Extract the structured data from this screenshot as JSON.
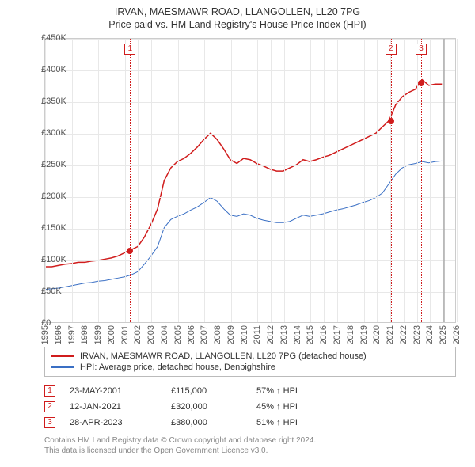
{
  "title_line1": "IRVAN, MAESMAWR ROAD, LLANGOLLEN, LL20 7PG",
  "title_line2": "Price paid vs. HM Land Registry's House Price Index (HPI)",
  "chart": {
    "type": "line",
    "background_color": "#ffffff",
    "grid_color": "#e8e8e8",
    "border_color": "#cccccc",
    "xmin": 1995,
    "xmax": 2026,
    "ymin": 0,
    "ymax": 450000,
    "ytick_step": 50000,
    "yticks": [
      "£0",
      "£50K",
      "£100K",
      "£150K",
      "£200K",
      "£250K",
      "£300K",
      "£350K",
      "£400K",
      "£450K"
    ],
    "xticks": [
      1995,
      1996,
      1997,
      1998,
      1999,
      2000,
      2001,
      2002,
      2003,
      2004,
      2005,
      2006,
      2007,
      2008,
      2009,
      2010,
      2011,
      2012,
      2013,
      2014,
      2015,
      2016,
      2017,
      2018,
      2019,
      2020,
      2021,
      2022,
      2023,
      2024,
      2025,
      2026
    ],
    "label_fontsize": 11,
    "label_color": "#555555",
    "series": [
      {
        "name": "property",
        "label": "IRVAN, MAESMAWR ROAD, LLANGOLLEN, LL20 7PG (detached house)",
        "color": "#d01c1c",
        "line_width": 1.5,
        "points": [
          [
            1995.0,
            88000
          ],
          [
            1995.5,
            88000
          ],
          [
            1996.0,
            90000
          ],
          [
            1996.5,
            92000
          ],
          [
            1997.0,
            93000
          ],
          [
            1997.5,
            95000
          ],
          [
            1998.0,
            95000
          ],
          [
            1998.5,
            97000
          ],
          [
            1999.0,
            98000
          ],
          [
            1999.5,
            100000
          ],
          [
            2000.0,
            102000
          ],
          [
            2000.5,
            105000
          ],
          [
            2001.0,
            110000
          ],
          [
            2001.4,
            115000
          ],
          [
            2001.5,
            115000
          ],
          [
            2002.0,
            120000
          ],
          [
            2002.5,
            135000
          ],
          [
            2003.0,
            155000
          ],
          [
            2003.5,
            180000
          ],
          [
            2004.0,
            225000
          ],
          [
            2004.5,
            245000
          ],
          [
            2005.0,
            255000
          ],
          [
            2005.5,
            260000
          ],
          [
            2006.0,
            268000
          ],
          [
            2006.5,
            278000
          ],
          [
            2007.0,
            290000
          ],
          [
            2007.5,
            300000
          ],
          [
            2008.0,
            290000
          ],
          [
            2008.5,
            275000
          ],
          [
            2009.0,
            258000
          ],
          [
            2009.5,
            252000
          ],
          [
            2010.0,
            260000
          ],
          [
            2010.5,
            258000
          ],
          [
            2011.0,
            252000
          ],
          [
            2011.5,
            248000
          ],
          [
            2012.0,
            243000
          ],
          [
            2012.5,
            240000
          ],
          [
            2013.0,
            240000
          ],
          [
            2013.5,
            245000
          ],
          [
            2014.0,
            250000
          ],
          [
            2014.5,
            258000
          ],
          [
            2015.0,
            255000
          ],
          [
            2015.5,
            258000
          ],
          [
            2016.0,
            262000
          ],
          [
            2016.5,
            265000
          ],
          [
            2017.0,
            270000
          ],
          [
            2017.5,
            275000
          ],
          [
            2018.0,
            280000
          ],
          [
            2018.5,
            285000
          ],
          [
            2019.0,
            290000
          ],
          [
            2019.5,
            295000
          ],
          [
            2020.0,
            300000
          ],
          [
            2020.5,
            310000
          ],
          [
            2021.0,
            320000
          ],
          [
            2021.5,
            345000
          ],
          [
            2022.0,
            358000
          ],
          [
            2022.5,
            365000
          ],
          [
            2023.0,
            370000
          ],
          [
            2023.3,
            380000
          ],
          [
            2023.5,
            385000
          ],
          [
            2024.0,
            376000
          ],
          [
            2024.5,
            378000
          ],
          [
            2025.0,
            378000
          ]
        ]
      },
      {
        "name": "hpi",
        "label": "HPI: Average price, detached house, Denbighshire",
        "color": "#3a6fc4",
        "line_width": 1,
        "points": [
          [
            1995.0,
            52000
          ],
          [
            1995.5,
            53000
          ],
          [
            1996.0,
            54000
          ],
          [
            1996.5,
            56000
          ],
          [
            1997.0,
            58000
          ],
          [
            1997.5,
            60000
          ],
          [
            1998.0,
            62000
          ],
          [
            1998.5,
            63000
          ],
          [
            1999.0,
            65000
          ],
          [
            1999.5,
            66000
          ],
          [
            2000.0,
            68000
          ],
          [
            2000.5,
            70000
          ],
          [
            2001.0,
            72000
          ],
          [
            2001.5,
            75000
          ],
          [
            2002.0,
            80000
          ],
          [
            2002.5,
            92000
          ],
          [
            2003.0,
            105000
          ],
          [
            2003.5,
            120000
          ],
          [
            2004.0,
            150000
          ],
          [
            2004.5,
            163000
          ],
          [
            2005.0,
            168000
          ],
          [
            2005.5,
            172000
          ],
          [
            2006.0,
            178000
          ],
          [
            2006.5,
            183000
          ],
          [
            2007.0,
            190000
          ],
          [
            2007.5,
            198000
          ],
          [
            2008.0,
            192000
          ],
          [
            2008.5,
            180000
          ],
          [
            2009.0,
            170000
          ],
          [
            2009.5,
            168000
          ],
          [
            2010.0,
            172000
          ],
          [
            2010.5,
            170000
          ],
          [
            2011.0,
            165000
          ],
          [
            2011.5,
            162000
          ],
          [
            2012.0,
            160000
          ],
          [
            2012.5,
            158000
          ],
          [
            2013.0,
            158000
          ],
          [
            2013.5,
            160000
          ],
          [
            2014.0,
            165000
          ],
          [
            2014.5,
            170000
          ],
          [
            2015.0,
            168000
          ],
          [
            2015.5,
            170000
          ],
          [
            2016.0,
            172000
          ],
          [
            2016.5,
            175000
          ],
          [
            2017.0,
            178000
          ],
          [
            2017.5,
            180000
          ],
          [
            2018.0,
            183000
          ],
          [
            2018.5,
            186000
          ],
          [
            2019.0,
            190000
          ],
          [
            2019.5,
            193000
          ],
          [
            2020.0,
            198000
          ],
          [
            2020.5,
            205000
          ],
          [
            2021.0,
            220000
          ],
          [
            2021.5,
            235000
          ],
          [
            2022.0,
            245000
          ],
          [
            2022.5,
            250000
          ],
          [
            2023.0,
            252000
          ],
          [
            2023.5,
            255000
          ],
          [
            2024.0,
            253000
          ],
          [
            2024.5,
            255000
          ],
          [
            2025.0,
            256000
          ]
        ]
      }
    ],
    "markers": [
      {
        "n": "1",
        "x": 2001.4,
        "y": 115000,
        "color": "#d01c1c"
      },
      {
        "n": "2",
        "x": 2021.03,
        "y": 320000,
        "color": "#d01c1c"
      },
      {
        "n": "3",
        "x": 2023.32,
        "y": 380000,
        "color": "#d01c1c"
      }
    ],
    "current_vline": {
      "x": 2025.0,
      "color": "#999999"
    }
  },
  "legend": {
    "border_color": "#bbbbbb"
  },
  "sales": [
    {
      "n": "1",
      "date": "23-MAY-2001",
      "price": "£115,000",
      "hpi_pct": "57%",
      "hpi_dir": "↑",
      "hpi_label": "HPI",
      "color": "#d01c1c"
    },
    {
      "n": "2",
      "date": "12-JAN-2021",
      "price": "£320,000",
      "hpi_pct": "45%",
      "hpi_dir": "↑",
      "hpi_label": "HPI",
      "color": "#d01c1c"
    },
    {
      "n": "3",
      "date": "28-APR-2023",
      "price": "£380,000",
      "hpi_pct": "51%",
      "hpi_dir": "↑",
      "hpi_label": "HPI",
      "color": "#d01c1c"
    }
  ],
  "footer_line1": "Contains HM Land Registry data © Crown copyright and database right 2024.",
  "footer_line2": "This data is licensed under the Open Government Licence v3.0."
}
